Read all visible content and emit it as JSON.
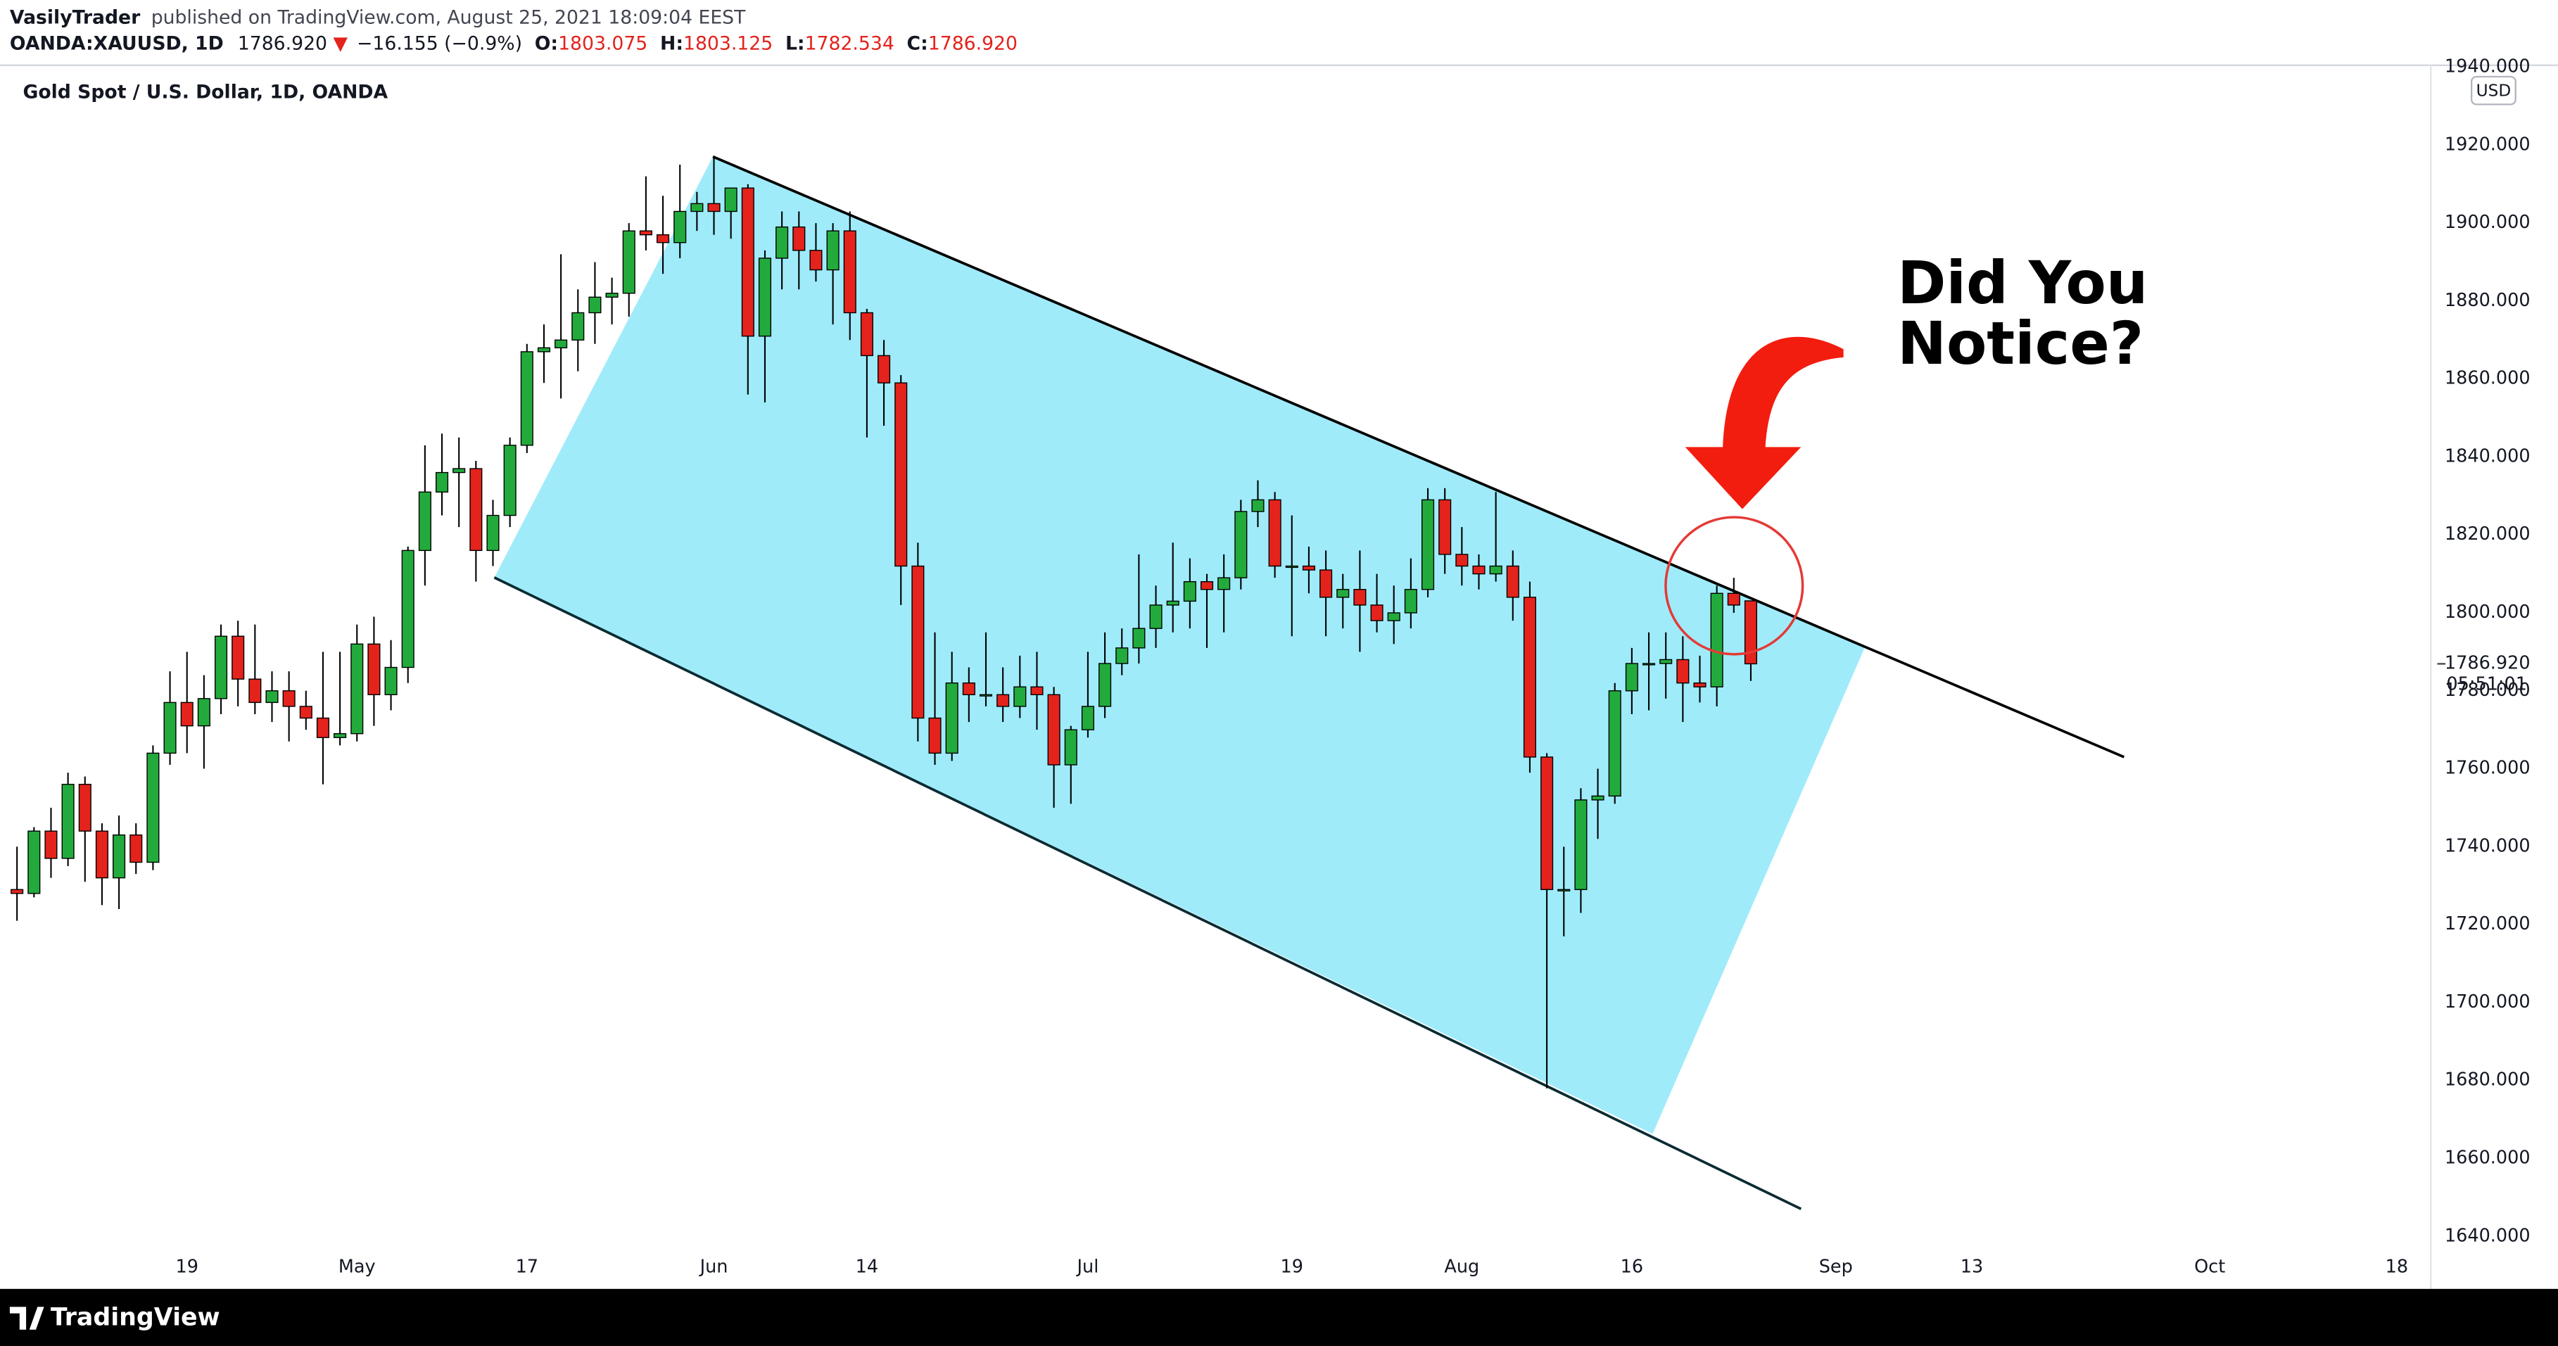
{
  "header": {
    "author": "VasilyTrader",
    "published": "published on TradingView.com, August 25, 2021 18:09:04 EEST",
    "symbol": "OANDA:XAUUSD, 1D",
    "last": "1786.920",
    "change": "−16.155 (−0.9%)",
    "ohlc": [
      {
        "label": "O:",
        "value": "1803.075"
      },
      {
        "label": "H:",
        "value": "1803.125"
      },
      {
        "label": "L:",
        "value": "1782.534"
      },
      {
        "label": "C:",
        "value": "1786.920"
      }
    ]
  },
  "chart_data": {
    "type": "candlestick",
    "title": "Gold Spot / U.S. Dollar, 1D, OANDA",
    "annotation": [
      "Did You",
      "Notice?"
    ],
    "currency": "USD",
    "last_price": {
      "value": 1786.92,
      "label": "1786.920"
    },
    "countdown": "05:51:01",
    "up_color": "#22ab3c",
    "down_color": "#e3231c",
    "grid": false,
    "x": [
      "2021-04-05",
      "2021-04-06",
      "2021-04-07",
      "2021-04-08",
      "2021-04-09",
      "2021-04-12",
      "2021-04-13",
      "2021-04-14",
      "2021-04-15",
      "2021-04-16",
      "2021-04-19",
      "2021-04-20",
      "2021-04-21",
      "2021-04-22",
      "2021-04-23",
      "2021-04-26",
      "2021-04-27",
      "2021-04-28",
      "2021-04-29",
      "2021-04-30",
      "2021-05-03",
      "2021-05-04",
      "2021-05-05",
      "2021-05-06",
      "2021-05-07",
      "2021-05-10",
      "2021-05-11",
      "2021-05-12",
      "2021-05-13",
      "2021-05-14",
      "2021-05-17",
      "2021-05-18",
      "2021-05-19",
      "2021-05-20",
      "2021-05-21",
      "2021-05-24",
      "2021-05-25",
      "2021-05-26",
      "2021-05-27",
      "2021-05-28",
      "2021-05-31",
      "2021-06-01",
      "2021-06-02",
      "2021-06-03",
      "2021-06-04",
      "2021-06-07",
      "2021-06-08",
      "2021-06-09",
      "2021-06-10",
      "2021-06-11",
      "2021-06-14",
      "2021-06-15",
      "2021-06-16",
      "2021-06-17",
      "2021-06-18",
      "2021-06-21",
      "2021-06-22",
      "2021-06-23",
      "2021-06-24",
      "2021-06-25",
      "2021-06-28",
      "2021-06-29",
      "2021-06-30",
      "2021-07-01",
      "2021-07-02",
      "2021-07-05",
      "2021-07-06",
      "2021-07-07",
      "2021-07-08",
      "2021-07-09",
      "2021-07-12",
      "2021-07-13",
      "2021-07-14",
      "2021-07-15",
      "2021-07-16",
      "2021-07-19",
      "2021-07-20",
      "2021-07-21",
      "2021-07-22",
      "2021-07-23",
      "2021-07-26",
      "2021-07-27",
      "2021-07-28",
      "2021-07-29",
      "2021-07-30",
      "2021-08-02",
      "2021-08-03",
      "2021-08-04",
      "2021-08-05",
      "2021-08-06",
      "2021-08-09",
      "2021-08-10",
      "2021-08-11",
      "2021-08-12",
      "2021-08-13",
      "2021-08-16",
      "2021-08-17",
      "2021-08-18",
      "2021-08-19",
      "2021-08-20",
      "2021-08-23",
      "2021-08-24",
      "2021-08-25"
    ],
    "open": [
      1729,
      1728,
      1744,
      1737,
      1756,
      1744,
      1732,
      1743,
      1736,
      1764,
      1777,
      1771,
      1778,
      1794,
      1783,
      1777,
      1780,
      1776,
      1773,
      1768,
      1769,
      1792,
      1779,
      1786,
      1816,
      1831,
      1836,
      1837,
      1816,
      1825,
      1843,
      1867,
      1868,
      1870,
      1877,
      1881,
      1882,
      1898,
      1897,
      1895,
      1903,
      1905,
      1903,
      1909,
      1871,
      1891,
      1899,
      1893,
      1888,
      1898,
      1877,
      1866,
      1859,
      1812,
      1773,
      1764,
      1782,
      1779,
      1779,
      1776,
      1781,
      1779,
      1761,
      1770,
      1776,
      1787,
      1791,
      1796,
      1802,
      1803,
      1808,
      1806,
      1809,
      1826,
      1829,
      1812,
      1812,
      1811,
      1804,
      1806,
      1802,
      1798,
      1800,
      1806,
      1829,
      1815,
      1812,
      1810,
      1812,
      1804,
      1763,
      1729,
      1729,
      1752,
      1753,
      1780,
      1787,
      1787,
      1788,
      1782,
      1781,
      1805,
      1803.075
    ],
    "high": [
      1740,
      1745,
      1750,
      1759,
      1758,
      1746,
      1748,
      1746,
      1766,
      1785,
      1790,
      1784,
      1797,
      1798,
      1797,
      1785,
      1785,
      1780,
      1790,
      1790,
      1797,
      1799,
      1793,
      1817,
      1843,
      1846,
      1845,
      1839,
      1829,
      1845,
      1869,
      1874,
      1892,
      1883,
      1890,
      1886,
      1900,
      1912,
      1907,
      1915,
      1908,
      1917,
      1909,
      1910,
      1893,
      1903,
      1903,
      1900,
      1900,
      1903,
      1878,
      1870,
      1861,
      1818,
      1795,
      1790,
      1786,
      1795,
      1786,
      1789,
      1790,
      1781,
      1771,
      1790,
      1795,
      1796,
      1815,
      1807,
      1818,
      1814,
      1810,
      1815,
      1829,
      1834,
      1831,
      1825,
      1817,
      1816,
      1810,
      1816,
      1810,
      1807,
      1814,
      1832,
      1832,
      1822,
      1815,
      1831,
      1816,
      1808,
      1764,
      1740,
      1755,
      1760,
      1782,
      1791,
      1795,
      1795,
      1794,
      1789,
      1807,
      1809,
      1803.125
    ],
    "low": [
      1721,
      1727,
      1732,
      1735,
      1731,
      1725,
      1724,
      1733,
      1734,
      1761,
      1764,
      1760,
      1774,
      1776,
      1774,
      1772,
      1767,
      1770,
      1756,
      1766,
      1767,
      1771,
      1775,
      1782,
      1807,
      1825,
      1822,
      1808,
      1812,
      1822,
      1841,
      1859,
      1855,
      1862,
      1869,
      1874,
      1876,
      1893,
      1887,
      1891,
      1898,
      1897,
      1896,
      1856,
      1854,
      1883,
      1883,
      1885,
      1874,
      1870,
      1845,
      1848,
      1802,
      1767,
      1761,
      1762,
      1772,
      1776,
      1772,
      1773,
      1770,
      1750,
      1751,
      1768,
      1773,
      1784,
      1787,
      1791,
      1795,
      1796,
      1791,
      1795,
      1806,
      1822,
      1809,
      1794,
      1805,
      1794,
      1796,
      1790,
      1795,
      1792,
      1796,
      1804,
      1810,
      1807,
      1806,
      1808,
      1798,
      1759,
      1678,
      1717,
      1723,
      1742,
      1751,
      1774,
      1775,
      1778,
      1772,
      1777,
      1776,
      1800,
      1782.534
    ],
    "close": [
      1728,
      1744,
      1737,
      1756,
      1744,
      1732,
      1743,
      1736,
      1764,
      1777,
      1771,
      1778,
      1794,
      1783,
      1777,
      1780,
      1776,
      1773,
      1768,
      1769,
      1792,
      1779,
      1786,
      1816,
      1831,
      1836,
      1837,
      1816,
      1825,
      1843,
      1867,
      1868,
      1870,
      1877,
      1881,
      1882,
      1898,
      1897,
      1895,
      1903,
      1905,
      1903,
      1909,
      1871,
      1891,
      1899,
      1893,
      1888,
      1898,
      1877,
      1866,
      1859,
      1812,
      1773,
      1764,
      1782,
      1779,
      1779,
      1776,
      1781,
      1779,
      1761,
      1770,
      1776,
      1787,
      1791,
      1796,
      1802,
      1803,
      1808,
      1806,
      1809,
      1826,
      1829,
      1812,
      1812,
      1811,
      1804,
      1806,
      1802,
      1798,
      1800,
      1806,
      1829,
      1815,
      1812,
      1810,
      1812,
      1804,
      1763,
      1729,
      1729,
      1752,
      1753,
      1780,
      1787,
      1787,
      1788,
      1782,
      1781,
      1805,
      1802,
      1786.92
    ],
    "xlim": [
      "2021-04-02",
      "2021-10-20"
    ],
    "xticks": [
      {
        "value": "2021-04-19",
        "label": "19"
      },
      {
        "value": "2021-05-03",
        "label": "May"
      },
      {
        "value": "2021-05-17",
        "label": "17"
      },
      {
        "value": "2021-06-01",
        "label": "Jun"
      },
      {
        "value": "2021-06-14",
        "label": "14"
      },
      {
        "value": "2021-07-01",
        "label": "Jul"
      },
      {
        "value": "2021-07-19",
        "label": "19"
      },
      {
        "value": "2021-08-02",
        "label": "Aug"
      },
      {
        "value": "2021-08-16",
        "label": "16"
      },
      {
        "value": "2021-09-01",
        "label": "Sep"
      },
      {
        "value": "2021-09-13",
        "label": "13"
      },
      {
        "value": "2021-10-01",
        "label": "Oct"
      },
      {
        "value": "2021-10-18",
        "label": "18"
      }
    ],
    "ylim": [
      1637,
      1940.5
    ],
    "yticks": [
      {
        "value": 1640,
        "label": "1640.000"
      },
      {
        "value": 1660,
        "label": "1660.000"
      },
      {
        "value": 1680,
        "label": "1680.000"
      },
      {
        "value": 1700,
        "label": "1700.000"
      },
      {
        "value": 1720,
        "label": "1720.000"
      },
      {
        "value": 1740,
        "label": "1740.000"
      },
      {
        "value": 1760,
        "label": "1760.000"
      },
      {
        "value": 1780,
        "label": "1780.000"
      },
      {
        "value": 1800,
        "label": "1800.000"
      },
      {
        "value": 1820,
        "label": "1820.000"
      },
      {
        "value": 1840,
        "label": "1840.000"
      },
      {
        "value": 1860,
        "label": "1860.000"
      },
      {
        "value": 1880,
        "label": "1880.000"
      },
      {
        "value": 1900,
        "label": "1900.000"
      },
      {
        "value": 1920,
        "label": "1920.000"
      },
      {
        "value": 1940,
        "label": "1940.000"
      }
    ]
  },
  "footer": {
    "brand": "TradingView"
  }
}
